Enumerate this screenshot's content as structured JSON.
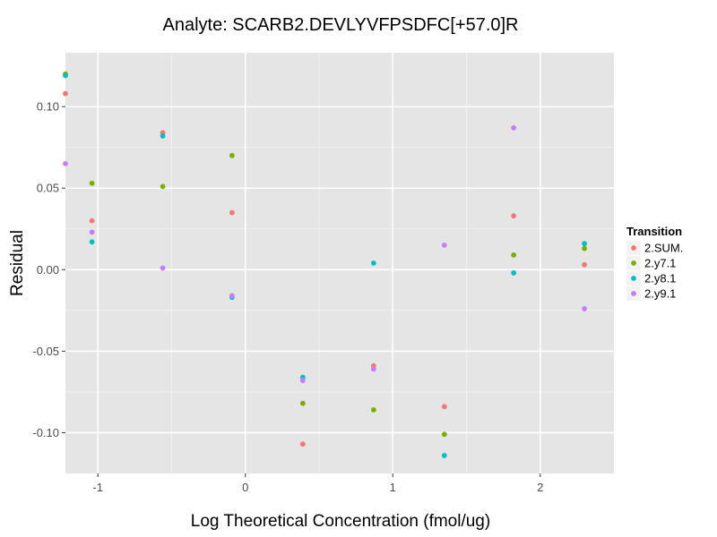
{
  "chart_data": {
    "type": "scatter",
    "title": "Analyte: SCARB2.DEVLYVFPSDFC[+57.0]R",
    "xlabel": "Log Theoretical Concentration (fmol/ug)",
    "ylabel": "Residual",
    "xlim": [
      -1.22,
      2.5
    ],
    "ylim": [
      -0.125,
      0.133
    ],
    "x_ticks": [
      -1,
      0,
      1,
      2
    ],
    "x_tick_labels": [
      "-1",
      "0",
      "1",
      "2"
    ],
    "y_ticks": [
      -0.1,
      -0.05,
      0.0,
      0.05,
      0.1
    ],
    "y_tick_labels": [
      "-0.10",
      "-0.05",
      "0.00",
      "0.05",
      "0.10"
    ],
    "grid": true,
    "legend": {
      "title": "Transition",
      "placement": "right"
    },
    "series": [
      {
        "name": "2.SUM.",
        "color": "#F8766D",
        "x": [
          -1.22,
          -1.04,
          -0.56,
          -0.09,
          0.39,
          0.87,
          1.35,
          1.82,
          2.3
        ],
        "y": [
          0.108,
          0.03,
          0.084,
          0.035,
          -0.107,
          -0.059,
          -0.084,
          0.033,
          0.003
        ]
      },
      {
        "name": "2.y7.1",
        "color": "#7CAE00",
        "x": [
          -1.22,
          -1.04,
          -0.56,
          -0.09,
          0.39,
          0.87,
          1.35,
          1.82,
          2.3
        ],
        "y": [
          0.12,
          0.053,
          0.051,
          0.07,
          -0.082,
          -0.086,
          -0.101,
          0.009,
          0.013
        ]
      },
      {
        "name": "2.y8.1",
        "color": "#00BFC4",
        "x": [
          -1.22,
          -1.04,
          -0.56,
          -0.09,
          0.39,
          0.87,
          1.35,
          1.82,
          2.3
        ],
        "y": [
          0.119,
          0.017,
          0.082,
          -0.017,
          -0.066,
          0.004,
          -0.114,
          -0.002,
          0.016
        ]
      },
      {
        "name": "2.y9.1",
        "color": "#C77CFF",
        "x": [
          -1.22,
          -1.04,
          -0.56,
          -0.09,
          0.39,
          0.87,
          1.35,
          1.82,
          2.3
        ],
        "y": [
          0.065,
          0.023,
          0.001,
          -0.016,
          -0.068,
          -0.061,
          0.015,
          0.087,
          -0.024
        ]
      }
    ]
  }
}
